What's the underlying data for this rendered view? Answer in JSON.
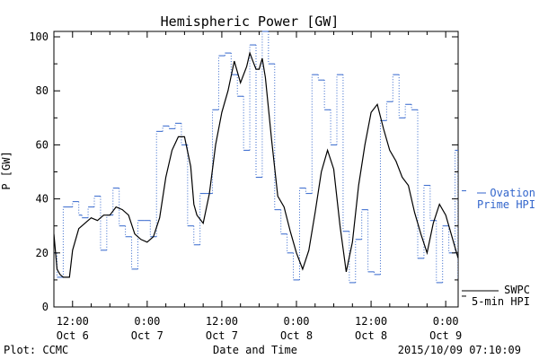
{
  "chart_data": {
    "type": "line",
    "title": "Hemispheric Power [GW]",
    "xlabel": "Date and Time",
    "ylabel": "P [GW]",
    "ylim": [
      0,
      102
    ],
    "y_ticks": [
      0,
      20,
      40,
      60,
      80,
      100
    ],
    "x_range_hours": [
      -15,
      50
    ],
    "x_ticks": [
      {
        "h": -12,
        "time": "12:00",
        "day": "Oct 6"
      },
      {
        "h": 0,
        "time": "0:00",
        "day": "Oct 7"
      },
      {
        "h": 12,
        "time": "12:00",
        "day": "Oct 7"
      },
      {
        "h": 24,
        "time": "0:00",
        "day": "Oct 8"
      },
      {
        "h": 36,
        "time": "12:00",
        "day": "Oct 8"
      },
      {
        "h": 48,
        "time": "0:00",
        "day": "Oct 9"
      }
    ],
    "grid": false,
    "footer_left": "Plot: CCMC",
    "footer_right": "2015/10/09 07:10:09",
    "series": [
      {
        "name": "Ovation Prime HPI",
        "color": "#3366cc",
        "style": "dotted-step",
        "x": [
          -15,
          -14.5,
          -13.5,
          -12,
          -11,
          -10.5,
          -9.5,
          -8.5,
          -7.5,
          -6.5,
          -5.5,
          -4.5,
          -3.5,
          -2.5,
          -1.5,
          -0.5,
          0.5,
          1.5,
          2.5,
          3.5,
          4.5,
          5.5,
          6.5,
          7.5,
          8.5,
          9.5,
          10.5,
          11.5,
          12.5,
          13.5,
          14.5,
          15.5,
          16.5,
          17.5,
          18.5,
          19.5,
          20.5,
          21.5,
          22.5,
          23.5,
          24.5,
          25.5,
          26.5,
          27.5,
          28.5,
          29.5,
          30.5,
          31.5,
          32.5,
          33.5,
          34.5,
          35.5,
          36.5,
          37.5,
          38.5,
          39.5,
          40.5,
          41.5,
          42.5,
          43.5,
          44.5,
          45.5,
          46.5,
          47.5,
          48.5,
          49.5,
          50
        ],
        "y": [
          20,
          11,
          37,
          39,
          34,
          33,
          37,
          41,
          21,
          34,
          44,
          30,
          26,
          14,
          32,
          32,
          26,
          65,
          67,
          66,
          68,
          60,
          30,
          23,
          42,
          42,
          73,
          93,
          94,
          86,
          78,
          58,
          97,
          48,
          102,
          90,
          36,
          27,
          20,
          10,
          44,
          42,
          86,
          84,
          73,
          60,
          86,
          28,
          9,
          25,
          36,
          13,
          12,
          69,
          76,
          86,
          70,
          75,
          73,
          18,
          45,
          32,
          9,
          30,
          20,
          58,
          10
        ]
      },
      {
        "name": "SWPC 5-min HPI",
        "color": "#000000",
        "style": "solid",
        "x": [
          -15,
          -14.5,
          -14,
          -13.5,
          -13,
          -12.5,
          -12,
          -11,
          -10,
          -9,
          -8,
          -7,
          -6,
          -5,
          -4,
          -3,
          -2,
          -1,
          0,
          1,
          2,
          3,
          4,
          5,
          6,
          7,
          7.5,
          8,
          9,
          10,
          11,
          12,
          13,
          14,
          15,
          16,
          16.5,
          17,
          17.5,
          18,
          18.5,
          19,
          20,
          21,
          22,
          23,
          24,
          25,
          26,
          27,
          28,
          29,
          30,
          31,
          32,
          33,
          34,
          35,
          36,
          37,
          38,
          39,
          40,
          41,
          42,
          43,
          44,
          45,
          46,
          47,
          48,
          49,
          50
        ],
        "y": [
          27,
          14,
          12,
          11,
          11,
          11,
          21,
          29,
          31,
          33,
          32,
          34,
          34,
          37,
          36,
          34,
          27,
          25,
          24,
          26,
          33,
          48,
          58,
          63,
          63,
          52,
          38,
          34,
          31,
          42,
          60,
          72,
          80,
          91,
          83,
          89,
          94,
          91,
          88,
          88,
          92,
          85,
          62,
          41,
          37,
          28,
          20,
          14,
          21,
          35,
          50,
          58,
          51,
          30,
          13,
          24,
          45,
          60,
          72,
          75,
          66,
          58,
          54,
          48,
          45,
          35,
          27,
          20,
          31,
          38,
          34,
          26,
          18
        ]
      }
    ]
  }
}
